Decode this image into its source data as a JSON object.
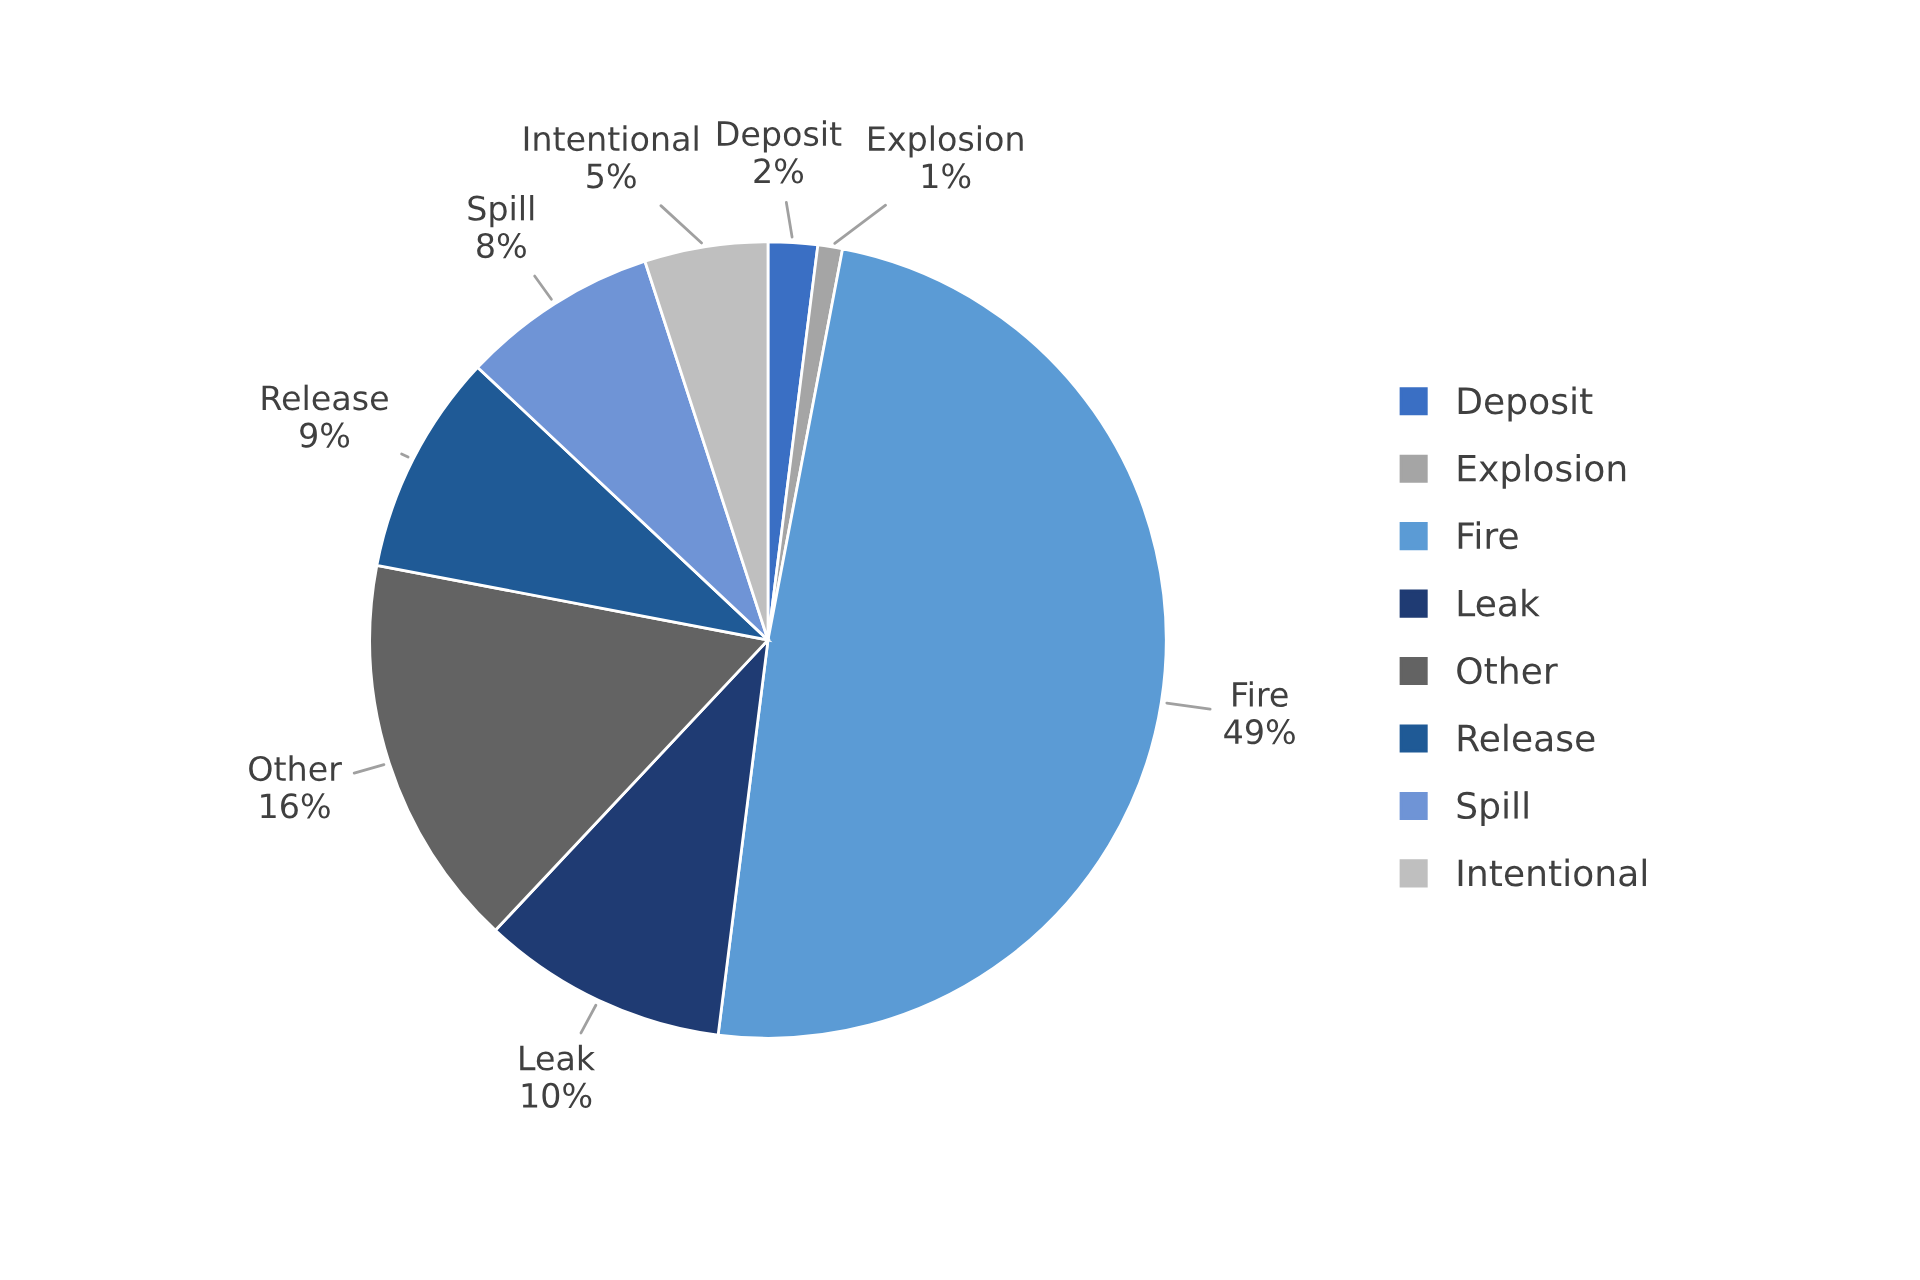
{
  "chart_data": {
    "type": "pie",
    "categories": [
      "Deposit",
      "Explosion",
      "Fire",
      "Leak",
      "Other",
      "Release",
      "Spill",
      "Intentional"
    ],
    "values": [
      2,
      1,
      49,
      10,
      16,
      9,
      8,
      5
    ],
    "value_labels": [
      "2%",
      "1%",
      "49%",
      "10%",
      "16%",
      "9%",
      "8%",
      "5%"
    ],
    "colors": [
      "#3a6fc4",
      "#a5a5a5",
      "#5b9bd5",
      "#1f3b73",
      "#636363",
      "#1f5a96",
      "#6f94d6",
      "#bfbfbf"
    ],
    "legend": "right"
  }
}
